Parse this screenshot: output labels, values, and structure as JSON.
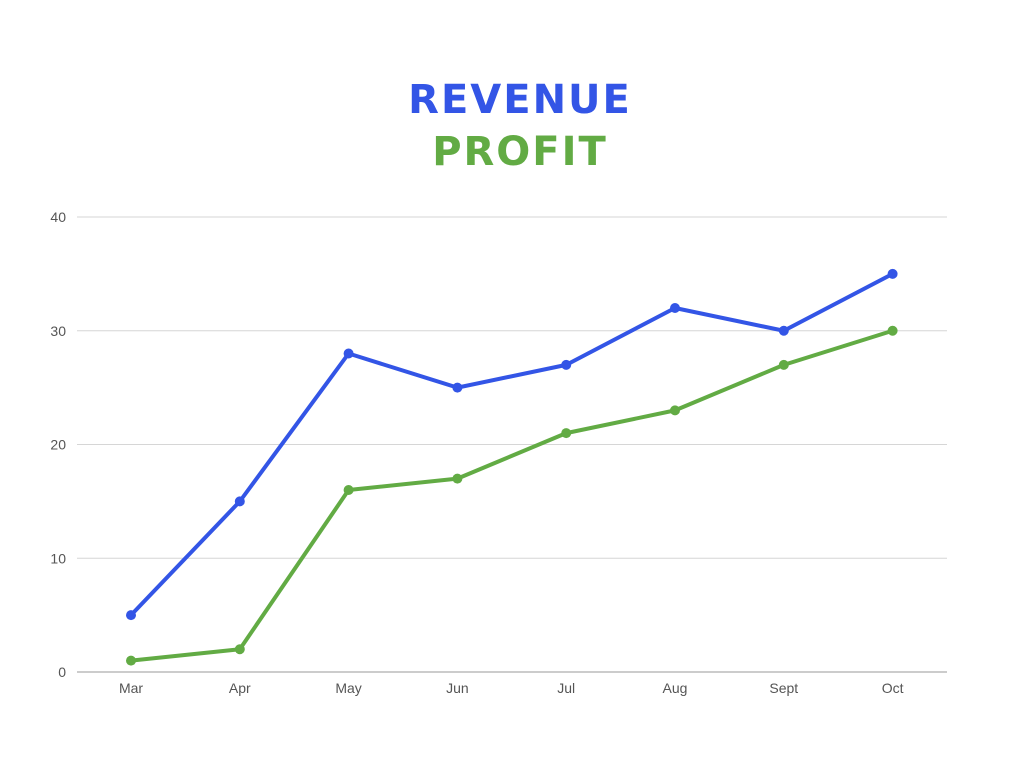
{
  "chart_data": {
    "type": "line",
    "title": "",
    "xlabel": "",
    "ylabel": "",
    "legend_placement": "top-center",
    "grid": true,
    "categories": [
      "Mar",
      "Apr",
      "May",
      "Jun",
      "Jul",
      "Aug",
      "Sept",
      "Oct"
    ],
    "ylim": [
      0,
      40
    ],
    "yticks": [
      0,
      10,
      20,
      30,
      40
    ],
    "series": [
      {
        "name": "REVENUE",
        "color": "#3355e6",
        "values": [
          5,
          15,
          28,
          25,
          27,
          32,
          30,
          35
        ]
      },
      {
        "name": "PROFIT",
        "color": "#62ab44",
        "values": [
          1,
          2,
          16,
          17,
          21,
          23,
          27,
          30
        ]
      }
    ]
  }
}
